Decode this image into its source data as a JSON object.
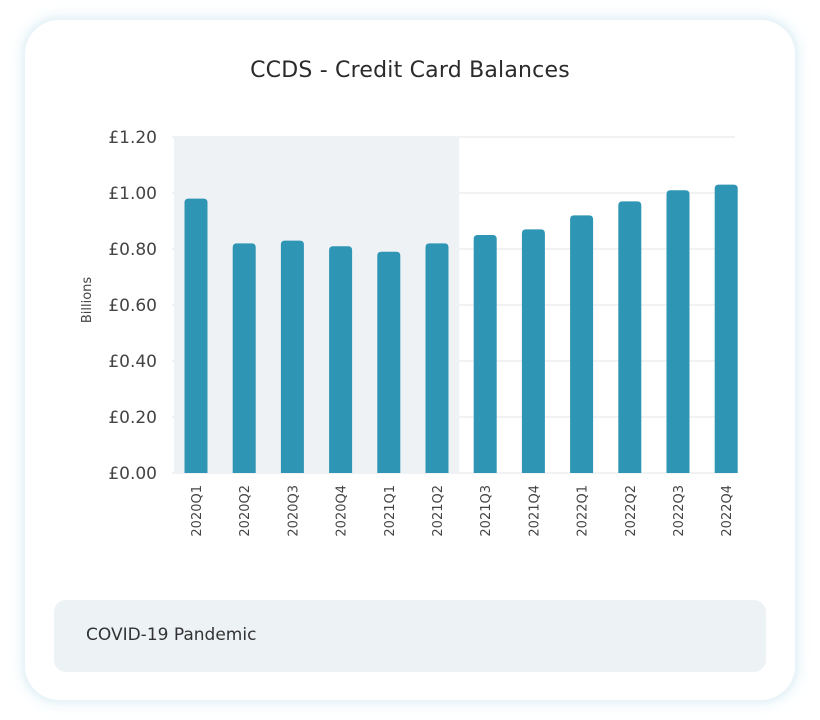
{
  "chart_data": {
    "type": "bar",
    "title": "CCDS - Credit Card Balances",
    "ylabel": "Billions",
    "xlabel": "",
    "ylim": [
      0,
      1.2
    ],
    "yticks": [
      "£0.00",
      "£0.20",
      "£0.40",
      "£0.60",
      "£0.80",
      "£1.00",
      "£1.20"
    ],
    "categories": [
      "2020Q1",
      "2020Q2",
      "2020Q3",
      "2020Q4",
      "2021Q1",
      "2021Q2",
      "2021Q3",
      "2021Q4",
      "2022Q1",
      "2022Q2",
      "2022Q3",
      "2022Q4"
    ],
    "values": [
      0.98,
      0.82,
      0.83,
      0.81,
      0.79,
      0.82,
      0.85,
      0.87,
      0.92,
      0.97,
      1.01,
      1.03
    ],
    "highlight": {
      "label": "COVID-19 Pandemic",
      "from": "2020Q1",
      "to": "2021Q2"
    },
    "bar_color": "#2e95b4",
    "highlight_color": "#eef2f5",
    "grid": true
  }
}
